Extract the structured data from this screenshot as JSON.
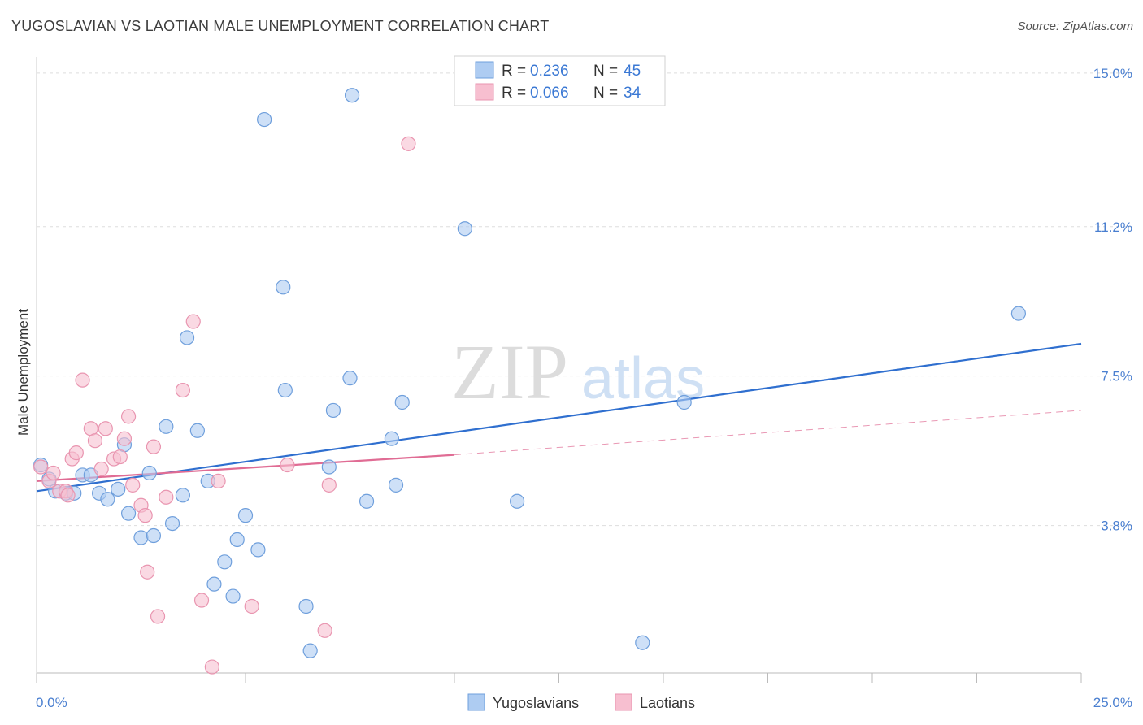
{
  "title": "YUGOSLAVIAN VS LAOTIAN MALE UNEMPLOYMENT CORRELATION CHART",
  "source": "Source: ZipAtlas.com",
  "watermark": {
    "zip": "ZIP",
    "atlas": "atlas"
  },
  "colors": {
    "blue_fill": "#aeccf2",
    "blue_stroke": "#6f9fdc",
    "blue_line": "#2f6fcf",
    "pink_fill": "#f7bfd0",
    "pink_stroke": "#e995b0",
    "pink_line": "#e06c94",
    "tick_label": "#4a7fd0",
    "grid": "#dddddd"
  },
  "legend": {
    "entries": [
      {
        "r_label": "R =",
        "r_value": "0.236",
        "n_label": "N =",
        "n_value": "45"
      },
      {
        "r_label": "R =",
        "r_value": "0.066",
        "n_label": "N =",
        "n_value": "34"
      }
    ]
  },
  "bottom_legend": [
    "Yugoslavians",
    "Laotians"
  ],
  "chart_data": {
    "type": "scatter",
    "xlabel": "",
    "ylabel": "Male Unemployment",
    "xlim": [
      0,
      25
    ],
    "ylim": [
      0.15,
      15.4
    ],
    "x_tick_labels": [
      "0.0%",
      "25.0%"
    ],
    "y_ticks": [
      3.8,
      7.5,
      11.2,
      15.0
    ],
    "y_tick_labels": [
      "3.8%",
      "7.5%",
      "11.2%",
      "15.0%"
    ],
    "grid": "horizontal dashed",
    "legend_placement": "top-center",
    "series": [
      {
        "name": "Yugoslavians",
        "trend": {
          "x0": 0.0,
          "y0": 4.65,
          "x1": 25.0,
          "y1": 8.3,
          "style": "solid"
        },
        "points": [
          [
            0.1,
            5.3
          ],
          [
            0.3,
            4.95
          ],
          [
            0.45,
            4.65
          ],
          [
            0.7,
            4.6
          ],
          [
            0.9,
            4.6
          ],
          [
            1.1,
            5.05
          ],
          [
            1.3,
            5.05
          ],
          [
            1.5,
            4.6
          ],
          [
            1.7,
            4.45
          ],
          [
            1.95,
            4.7
          ],
          [
            2.1,
            5.8
          ],
          [
            2.2,
            4.1
          ],
          [
            2.5,
            3.5
          ],
          [
            2.7,
            5.1
          ],
          [
            2.8,
            3.55
          ],
          [
            3.1,
            6.25
          ],
          [
            3.25,
            3.85
          ],
          [
            3.5,
            4.55
          ],
          [
            3.6,
            8.45
          ],
          [
            3.85,
            6.15
          ],
          [
            4.1,
            4.9
          ],
          [
            4.25,
            2.35
          ],
          [
            4.5,
            2.9
          ],
          [
            4.7,
            2.05
          ],
          [
            4.8,
            3.45
          ],
          [
            5.0,
            4.05
          ],
          [
            5.3,
            3.2
          ],
          [
            5.45,
            13.85
          ],
          [
            5.9,
            9.7
          ],
          [
            5.95,
            7.15
          ],
          [
            6.45,
            1.8
          ],
          [
            6.55,
            0.7
          ],
          [
            7.0,
            5.25
          ],
          [
            7.1,
            6.65
          ],
          [
            7.5,
            7.45
          ],
          [
            7.55,
            14.45
          ],
          [
            7.9,
            4.4
          ],
          [
            8.5,
            5.95
          ],
          [
            8.6,
            4.8
          ],
          [
            8.75,
            6.85
          ],
          [
            10.25,
            11.15
          ],
          [
            11.5,
            4.4
          ],
          [
            14.5,
            0.9
          ],
          [
            15.5,
            6.85
          ],
          [
            23.5,
            9.05
          ]
        ]
      },
      {
        "name": "Laotians",
        "trend": {
          "x0": 0.0,
          "y0": 4.9,
          "x1": 10.0,
          "y1": 5.55,
          "style": "solid",
          "extension_x1": 25.0,
          "extension_y1": 6.65,
          "extension_style": "dashed"
        },
        "points": [
          [
            0.1,
            5.25
          ],
          [
            0.3,
            4.9
          ],
          [
            0.4,
            5.1
          ],
          [
            0.55,
            4.65
          ],
          [
            0.7,
            4.65
          ],
          [
            0.75,
            4.55
          ],
          [
            0.85,
            5.45
          ],
          [
            0.95,
            5.6
          ],
          [
            1.1,
            7.4
          ],
          [
            1.3,
            6.2
          ],
          [
            1.4,
            5.9
          ],
          [
            1.55,
            5.2
          ],
          [
            1.65,
            6.2
          ],
          [
            1.85,
            5.45
          ],
          [
            2.0,
            5.5
          ],
          [
            2.1,
            5.95
          ],
          [
            2.2,
            6.5
          ],
          [
            2.3,
            4.8
          ],
          [
            2.5,
            4.3
          ],
          [
            2.6,
            4.05
          ],
          [
            2.65,
            2.65
          ],
          [
            2.8,
            5.75
          ],
          [
            2.9,
            1.55
          ],
          [
            3.1,
            4.5
          ],
          [
            3.5,
            7.15
          ],
          [
            3.75,
            8.85
          ],
          [
            3.95,
            1.95
          ],
          [
            4.2,
            0.3
          ],
          [
            4.35,
            4.9
          ],
          [
            5.15,
            1.8
          ],
          [
            6.0,
            5.3
          ],
          [
            6.9,
            1.2
          ],
          [
            7.0,
            4.8
          ],
          [
            8.9,
            13.25
          ]
        ]
      }
    ]
  }
}
